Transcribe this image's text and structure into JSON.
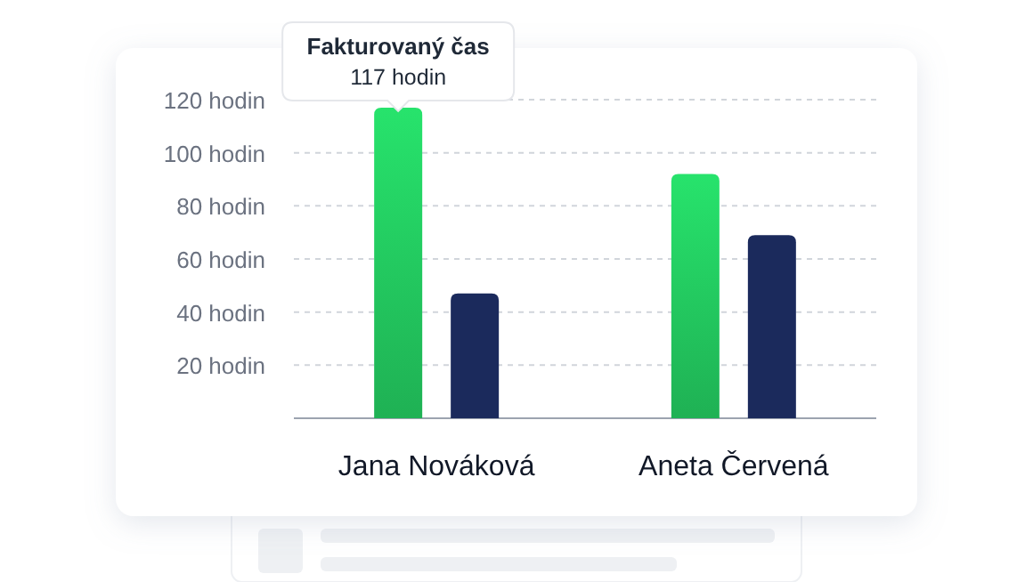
{
  "chart_data": {
    "type": "bar",
    "categories": [
      "Jana Nováková",
      "Aneta Červená"
    ],
    "series": [
      {
        "color": "#22c55e",
        "values": [
          117,
          92
        ]
      },
      {
        "color": "#1b2a5c",
        "values": [
          47,
          69
        ]
      }
    ],
    "ylim": [
      0,
      120
    ],
    "yticks": [
      {
        "value": 20,
        "label": "20 hodin"
      },
      {
        "value": 40,
        "label": "40 hodin"
      },
      {
        "value": 60,
        "label": "60 hodin"
      },
      {
        "value": 80,
        "label": "80 hodin"
      },
      {
        "value": 100,
        "label": "100 hodin"
      },
      {
        "value": 120,
        "label": "120 hodin"
      }
    ],
    "grid": "y",
    "annotations": [
      "Fakturovaný čas\n117 hodin"
    ]
  }
}
